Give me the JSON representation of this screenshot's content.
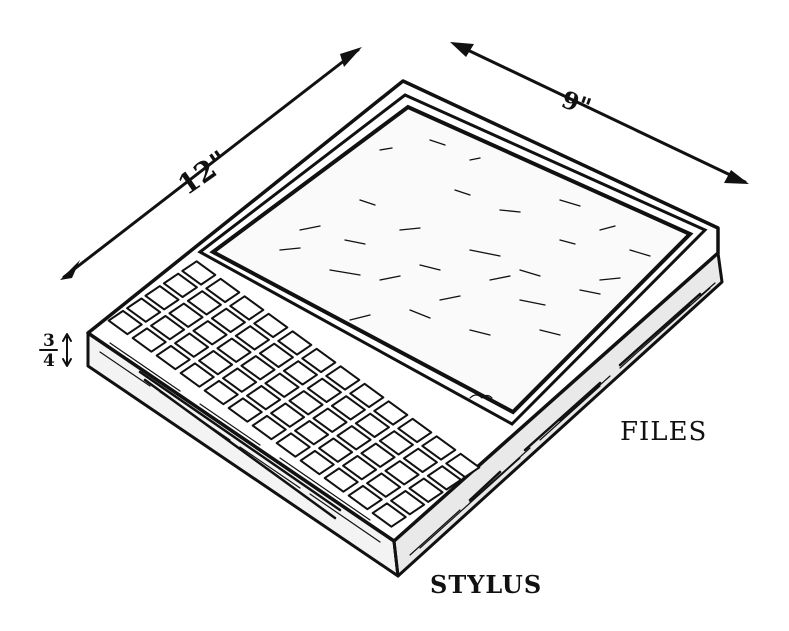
{
  "labels": {
    "length": "12\"",
    "width": "9\"",
    "thickness_num": "3",
    "thickness_den": "4",
    "files": "FILES",
    "stylus": "STYLUS"
  },
  "colors": {
    "ink": "#111111",
    "paper": "#ffffff"
  }
}
